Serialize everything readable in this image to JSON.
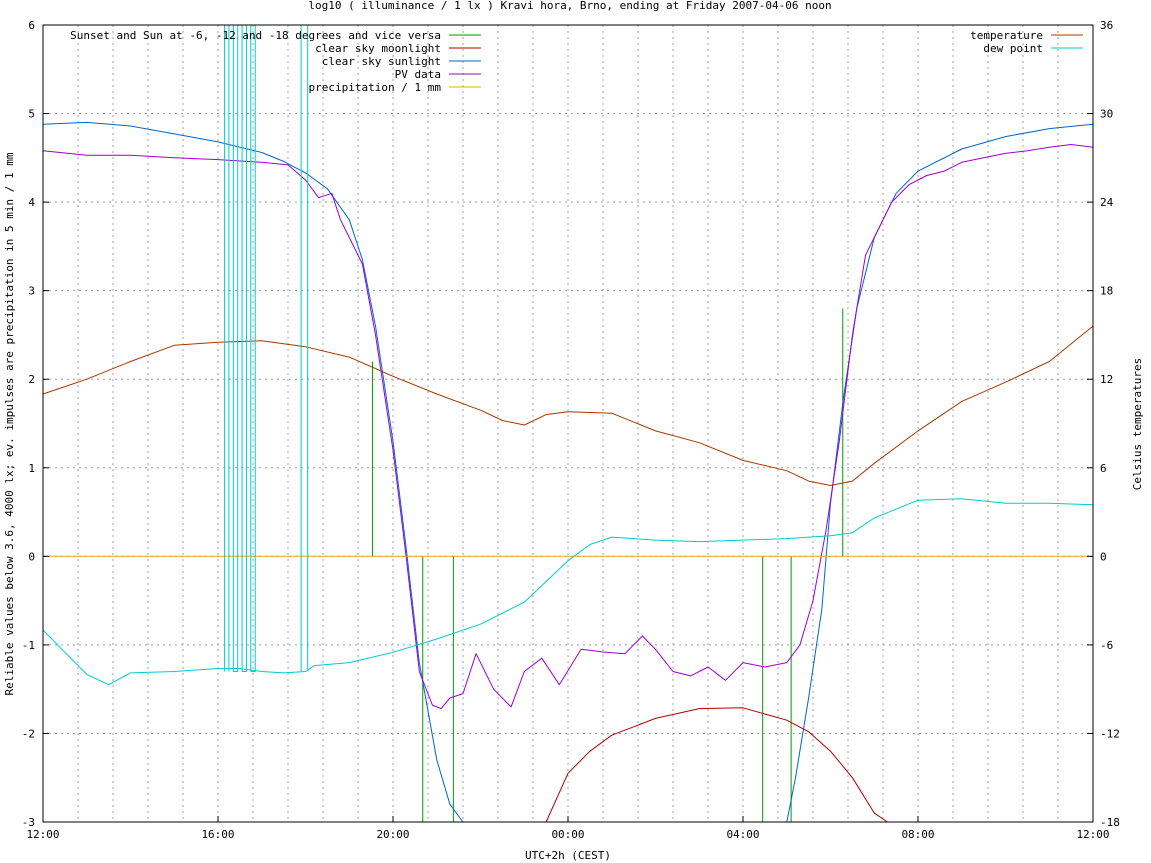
{
  "chart_data": {
    "type": "line",
    "title": "log10 ( illuminance / 1 lx ) Kravi hora, Brno, ending at Friday 2007-04-06 noon",
    "xlabel": "UTC+2h (CEST)",
    "ylabel_left": "Reliable values below 3.6, 4000 lx; ev. impulses are precipitation in 5 min / 1 mm",
    "ylabel_right": "Celsius temperatures",
    "grid": true,
    "x_range_hours": [
      12,
      36
    ],
    "x_ticks": [
      {
        "h": 12,
        "label": "12:00"
      },
      {
        "h": 16,
        "label": "16:00"
      },
      {
        "h": 20,
        "label": "20:00"
      },
      {
        "h": 24,
        "label": "00:00"
      },
      {
        "h": 28,
        "label": "04:00"
      },
      {
        "h": 32,
        "label": "08:00"
      },
      {
        "h": 36,
        "label": "12:00"
      }
    ],
    "x_minor_grid_hours": [
      12.8,
      13.6,
      14.4,
      15.2,
      16.8,
      17.6,
      18.4,
      19.2,
      20.8,
      21.6,
      22.4,
      23.2,
      24.8,
      25.6,
      26.4,
      27.2,
      28.8,
      29.6,
      30.4,
      31.2,
      32.8,
      33.6,
      34.4,
      35.2
    ],
    "y_left_range": [
      -3,
      6
    ],
    "y_left_ticks": [
      "-3",
      "-2",
      "-1",
      "0",
      "1",
      "2",
      "3",
      "4",
      "5",
      "6"
    ],
    "y_right_range": [
      -18,
      36
    ],
    "y_right_ticks": [
      "-18",
      "-12",
      "-6",
      "0",
      "6",
      "12",
      "18",
      "24",
      "30",
      "36"
    ],
    "legend_left": [
      {
        "name": "Sunset and Sun at -6, -12 and -18 degrees and vice versa",
        "color": "#009900"
      },
      {
        "name": "clear sky moonlight",
        "color": "#b00000"
      },
      {
        "name": "clear sky sunlight",
        "color": "#0066cc"
      },
      {
        "name": "PV data",
        "color": "#a000d0"
      },
      {
        "name": "precipitation / 1 mm",
        "color": "#e0b000"
      }
    ],
    "legend_right": [
      {
        "name": "temperature",
        "color": "#a83800"
      },
      {
        "name": "dew point",
        "color": "#00cccc"
      }
    ],
    "sun_events_hours": [
      {
        "h": 19.53,
        "top": 2.2
      },
      {
        "h": 20.68,
        "top": 0
      },
      {
        "h": 21.38,
        "top": 0
      },
      {
        "h": 28.45,
        "top": 0
      },
      {
        "h": 29.1,
        "top": 0
      },
      {
        "h": 30.28,
        "top": 2.8
      }
    ],
    "series": [
      {
        "name": "clear sky sunlight",
        "axis": "left",
        "x": [
          12,
          13,
          14,
          15,
          16,
          17,
          17.5,
          18,
          18.5,
          19,
          19.3,
          19.6,
          20,
          20.3,
          20.6,
          21,
          21.3,
          21.6,
          29,
          29.2,
          29.5,
          29.8,
          30,
          30.3,
          30.6,
          31,
          31.5,
          32,
          33,
          34,
          35,
          36
        ],
        "y": [
          4.88,
          4.9,
          4.86,
          4.77,
          4.68,
          4.56,
          4.46,
          4.33,
          4.15,
          3.8,
          3.35,
          2.6,
          1.3,
          0.1,
          -1.2,
          -2.3,
          -2.8,
          -3.0,
          -3.0,
          -2.5,
          -1.6,
          -0.6,
          0.6,
          1.8,
          2.8,
          3.6,
          4.1,
          4.35,
          4.6,
          4.74,
          4.83,
          4.88
        ]
      },
      {
        "name": "clear sky moonlight",
        "axis": "left",
        "x": [
          23.5,
          24,
          24.5,
          25,
          26,
          27,
          28,
          29,
          29.5,
          30,
          30.5,
          31,
          31.3
        ],
        "y": [
          -3.0,
          -2.45,
          -2.2,
          -2.02,
          -1.83,
          -1.72,
          -1.71,
          -1.85,
          -1.98,
          -2.2,
          -2.5,
          -2.9,
          -3.0
        ]
      },
      {
        "name": "PV data",
        "axis": "left",
        "x": [
          12,
          13,
          14,
          15,
          16,
          17,
          17.6,
          18,
          18.3,
          18.6,
          18.8,
          19,
          19.3,
          19.6,
          20,
          20.3,
          20.6,
          20.9,
          21.1,
          21.3,
          21.6,
          21.9,
          22.3,
          22.7,
          23,
          23.4,
          23.8,
          24.3,
          24.8,
          25.3,
          25.7,
          26,
          26.4,
          26.8,
          27.2,
          27.6,
          28,
          28.5,
          29,
          29.3,
          29.6,
          29.9,
          30.2,
          30.5,
          30.8,
          31.1,
          31.4,
          31.8,
          32.2,
          32.6,
          33,
          33.5,
          34,
          34.5,
          35,
          35.5,
          36
        ],
        "y": [
          4.58,
          4.53,
          4.53,
          4.5,
          4.48,
          4.45,
          4.42,
          4.25,
          4.05,
          4.1,
          3.8,
          3.6,
          3.3,
          2.5,
          1.2,
          0.0,
          -1.3,
          -1.68,
          -1.72,
          -1.6,
          -1.55,
          -1.1,
          -1.5,
          -1.7,
          -1.3,
          -1.15,
          -1.45,
          -1.05,
          -1.08,
          -1.1,
          -0.9,
          -1.05,
          -1.3,
          -1.35,
          -1.25,
          -1.4,
          -1.2,
          -1.25,
          -1.2,
          -1.0,
          -0.5,
          0.3,
          1.3,
          2.5,
          3.4,
          3.7,
          4.0,
          4.2,
          4.3,
          4.35,
          4.45,
          4.5,
          4.55,
          4.58,
          4.62,
          4.65,
          4.62
        ]
      },
      {
        "name": "precipitation / 1 mm",
        "axis": "left",
        "x": [
          12,
          36
        ],
        "y": [
          0,
          0
        ]
      },
      {
        "name": "temperature",
        "axis": "right",
        "x": [
          12,
          13,
          14,
          15,
          16,
          17,
          18,
          19,
          20,
          21,
          22,
          22.5,
          23,
          23.5,
          24,
          25,
          26,
          27,
          28,
          29,
          29.5,
          30,
          30.5,
          31,
          32,
          33,
          34,
          35,
          36
        ],
        "y": [
          11,
          12,
          13.2,
          14.3,
          14.5,
          14.6,
          14.2,
          13.5,
          12.2,
          11,
          9.9,
          9.2,
          8.9,
          9.6,
          9.8,
          9.7,
          8.5,
          7.7,
          6.5,
          5.8,
          5.1,
          4.8,
          5.1,
          6.3,
          8.5,
          10.5,
          11.8,
          13.2,
          15.6
        ]
      },
      {
        "name": "dew point",
        "axis": "right",
        "x": [
          12,
          12.5,
          13,
          13.5,
          14,
          15,
          16,
          16.5,
          17,
          17.5,
          18,
          18.2,
          19,
          20,
          21,
          22,
          23,
          24,
          24.5,
          25,
          26,
          27,
          28,
          29,
          29.5,
          30,
          30.5,
          31,
          32,
          33,
          34,
          35,
          36
        ],
        "y": [
          -5,
          -6.5,
          -8,
          -8.7,
          -7.9,
          -7.8,
          -7.6,
          -7.6,
          -7.8,
          -7.9,
          -7.8,
          -7.4,
          -7.2,
          -6.5,
          -5.6,
          -4.6,
          -3.1,
          -0.3,
          0.8,
          1.3,
          1.1,
          1.0,
          1.1,
          1.2,
          1.3,
          1.4,
          1.6,
          2.6,
          3.8,
          3.9,
          3.6,
          3.6,
          3.5
        ]
      },
      {
        "name": "dew point spikes",
        "axis": "right",
        "x": [
          16.15,
          16.25,
          16.35,
          16.45,
          16.55,
          16.65,
          16.75,
          16.85,
          17.9,
          18.05
        ],
        "y": [
          -7.8,
          36,
          36,
          -7.8,
          36,
          -7.8,
          36,
          -7.8,
          -7.8,
          36
        ]
      }
    ]
  }
}
